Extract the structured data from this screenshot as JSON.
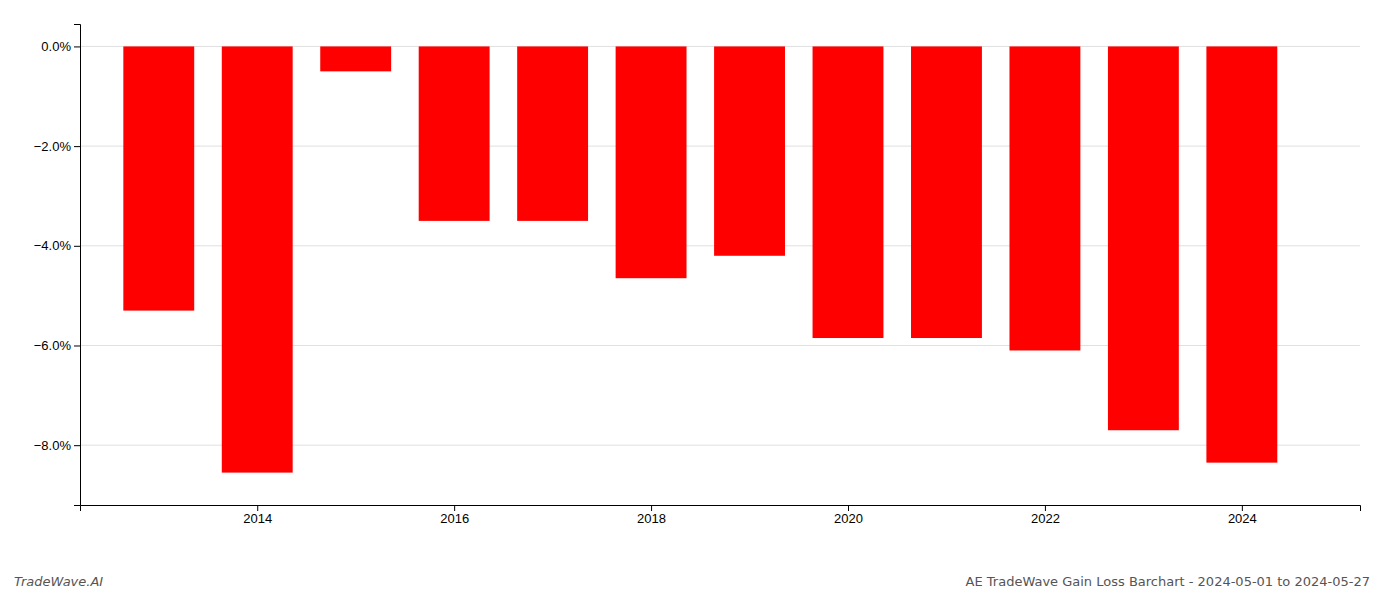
{
  "chart_data": {
    "type": "bar",
    "title": "AE TradeWave Gain Loss Barchart - 2024-05-01 to 2024-05-27",
    "annotations": [
      "TradeWave.AI"
    ],
    "x": [
      2013,
      2014,
      2015,
      2016,
      2017,
      2018,
      2019,
      2020,
      2021,
      2022,
      2023,
      2024
    ],
    "values": [
      -5.3,
      -8.55,
      -0.5,
      -3.5,
      -3.5,
      -4.65,
      -4.2,
      -5.85,
      -5.85,
      -6.1,
      -7.7,
      -8.35
    ],
    "color": "#ff0000",
    "xlim": [
      2012.2,
      2025.2
    ],
    "xticks": [
      2014,
      2016,
      2018,
      2020,
      2022,
      2024
    ],
    "ylim": [
      -9.2,
      0.45
    ],
    "yticks": [
      {
        "value": 0.0,
        "label": "0.0%"
      },
      {
        "value": -2.0,
        "label": "−2.0%"
      },
      {
        "value": -4.0,
        "label": "−4.0%"
      },
      {
        "value": -6.0,
        "label": "−6.0%"
      },
      {
        "value": -8.0,
        "label": "−8.0%"
      }
    ],
    "grid": true
  }
}
